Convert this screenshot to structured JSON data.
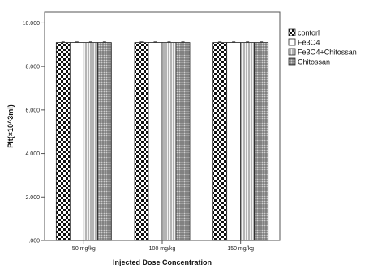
{
  "chart_data": {
    "type": "bar",
    "categories": [
      "50 mg/kg",
      "100 mg/kg",
      "150 mg/kg"
    ],
    "series": [
      {
        "name": "contorl",
        "values": [
          9.1,
          9.1,
          9.1
        ]
      },
      {
        "name": "Fe3O4",
        "values": [
          9.1,
          9.1,
          9.1
        ]
      },
      {
        "name": "Fe3O4+Chitossan",
        "values": [
          9.1,
          9.1,
          9.1
        ]
      },
      {
        "name": "Chitossan",
        "values": [
          9.1,
          9.1,
          9.1
        ]
      }
    ],
    "yticks": [
      ".000",
      "2.000",
      "4.000",
      "6.000",
      "8.000",
      "10.000"
    ],
    "ylim": [
      0,
      10.5
    ],
    "xlabel": "Injected Dose Concentration",
    "ylabel": "Plt(×10^3ml)",
    "legend_position": "right",
    "grid": false
  }
}
